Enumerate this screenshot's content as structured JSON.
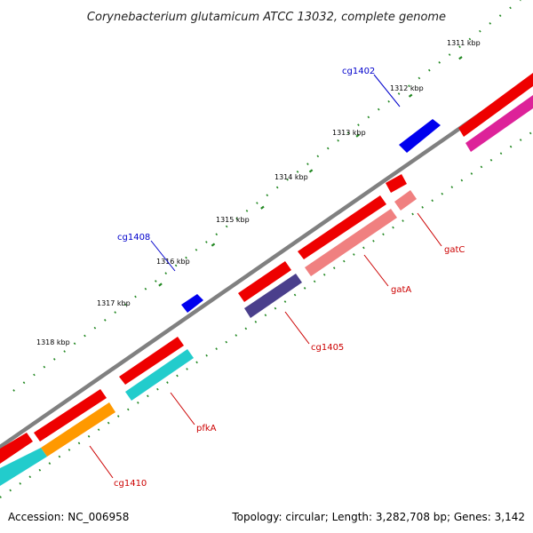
{
  "title": "Corynebacterium glutamicum ATCC 13032, complete genome",
  "footer": {
    "accession": "Accession: NC_006958",
    "summary": "Topology: circular; Length: 3,282,708 bp; Genes: 3,142"
  },
  "ticks": [
    "1311 kbp",
    "1312 kbp",
    "1313 kbp",
    "1314 kbp",
    "1315 kbp",
    "1316 kbp",
    "1317 kbp",
    "1318 kbp"
  ],
  "labels": {
    "cg1402": "cg1402",
    "cg1408": "cg1408",
    "gatC": "gatC",
    "gatA": "gatA",
    "cg1405": "cg1405",
    "pfkA": "pfkA",
    "cg1410": "cg1410"
  },
  "colors": {
    "forward_feature": "#0000ee",
    "cds": "#ee0000",
    "backbone": "#808080",
    "ticks": "#228822",
    "label_blue": "#0000cc",
    "label_red": "#cc0000",
    "gene_magenta": "#dd2299",
    "gene_salmon": "#f08080",
    "gene_slate": "#4a3f8c",
    "gene_cyan": "#22cccc",
    "gene_orange": "#ff9900"
  }
}
